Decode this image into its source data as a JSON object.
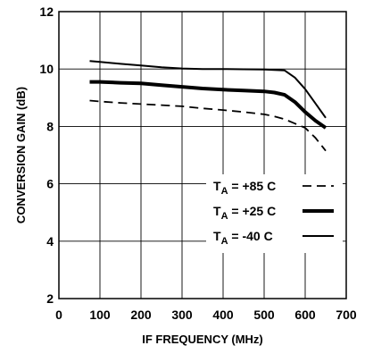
{
  "chart_data": {
    "type": "line",
    "title": "",
    "xlabel": "IF FREQUENCY (MHz)",
    "ylabel": "CONVERSION GAIN (dB)",
    "xlim": [
      0,
      700
    ],
    "ylim": [
      2,
      12
    ],
    "xticks": [
      0,
      100,
      200,
      300,
      400,
      500,
      600,
      700
    ],
    "yticks": [
      2,
      4,
      6,
      8,
      10,
      12
    ],
    "grid": true,
    "legend_position": "bottom-right",
    "series": [
      {
        "name": "+85 C",
        "style": "dashed",
        "width": 1.8,
        "color": "#000000",
        "x": [
          75,
          100,
          150,
          200,
          250,
          300,
          350,
          400,
          450,
          500,
          525,
          550,
          575,
          600,
          625,
          650
        ],
        "y": [
          8.9,
          8.87,
          8.82,
          8.78,
          8.74,
          8.7,
          8.63,
          8.57,
          8.5,
          8.42,
          8.35,
          8.25,
          8.1,
          7.95,
          7.6,
          7.15
        ]
      },
      {
        "name": "+25 C",
        "style": "solid",
        "width": 4,
        "color": "#000000",
        "x": [
          75,
          100,
          150,
          200,
          250,
          300,
          350,
          400,
          450,
          500,
          525,
          550,
          575,
          600,
          625,
          650
        ],
        "y": [
          9.55,
          9.55,
          9.52,
          9.5,
          9.44,
          9.38,
          9.32,
          9.28,
          9.25,
          9.22,
          9.18,
          9.1,
          8.85,
          8.5,
          8.2,
          7.95
        ]
      },
      {
        "name": "-40 C",
        "style": "solid",
        "width": 2,
        "color": "#000000",
        "x": [
          75,
          100,
          150,
          200,
          250,
          300,
          350,
          400,
          450,
          500,
          525,
          550,
          575,
          600,
          625,
          650
        ],
        "y": [
          10.28,
          10.25,
          10.18,
          10.12,
          10.06,
          10.02,
          10.0,
          10.0,
          9.99,
          9.98,
          9.97,
          9.95,
          9.7,
          9.3,
          8.8,
          8.3
        ]
      }
    ],
    "legend_prefix": "T",
    "legend_subscript": "A",
    "legend_equals": " = "
  }
}
